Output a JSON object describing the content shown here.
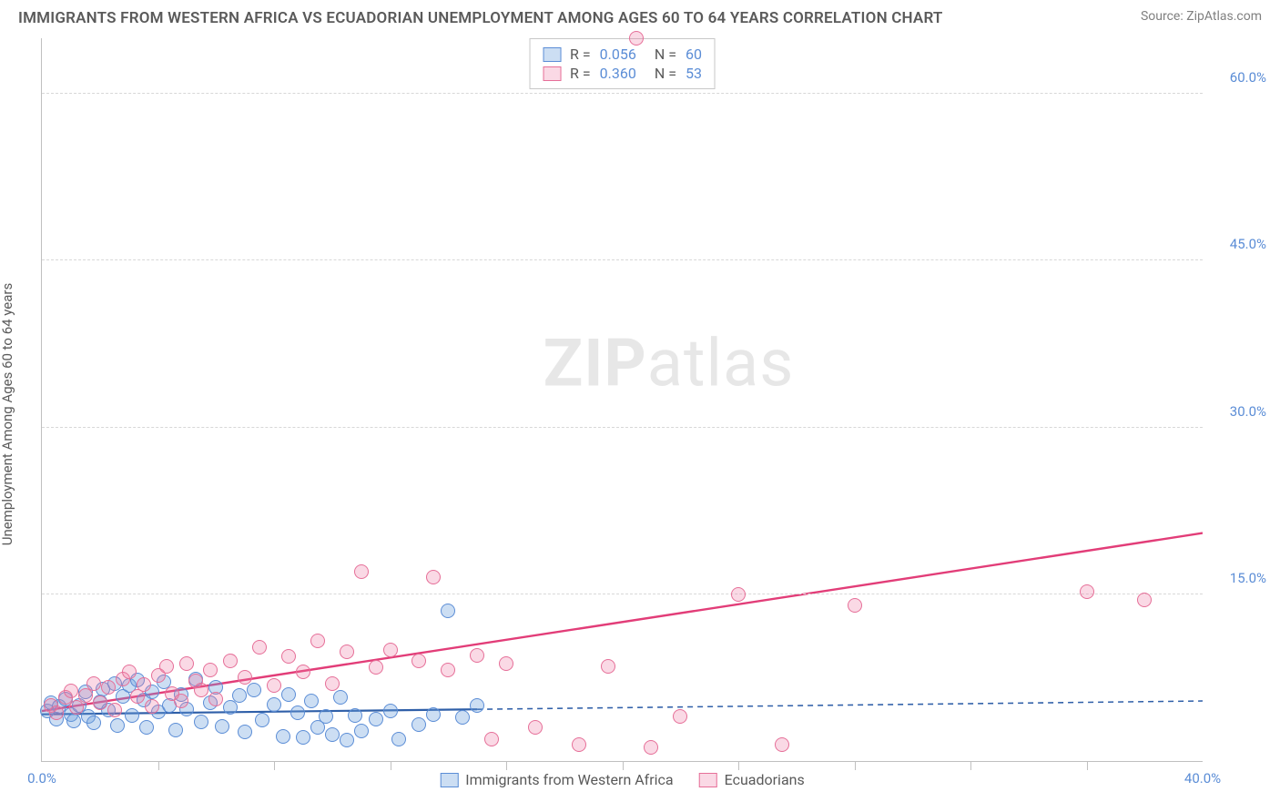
{
  "header": {
    "title": "IMMIGRANTS FROM WESTERN AFRICA VS ECUADORIAN UNEMPLOYMENT AMONG AGES 60 TO 64 YEARS CORRELATION CHART",
    "source_prefix": "Source: ",
    "source": "ZipAtlas.com"
  },
  "watermark": {
    "bold": "ZIP",
    "light": "atlas"
  },
  "chart": {
    "type": "scatter",
    "y_axis_label": "Unemployment Among Ages 60 to 64 years",
    "xlim": [
      0,
      40
    ],
    "ylim": [
      0,
      65
    ],
    "x_ticks": [
      0,
      40
    ],
    "x_tick_labels": [
      "0.0%",
      "40.0%"
    ],
    "x_minor_ticks": [
      4,
      8,
      12,
      16,
      20,
      24,
      28,
      32,
      36
    ],
    "y_ticks": [
      15,
      30,
      45,
      60
    ],
    "y_tick_labels": [
      "15.0%",
      "30.0%",
      "45.0%",
      "60.0%"
    ],
    "background_color": "#ffffff",
    "grid_color": "#d8d8d8",
    "axis_color": "#c0c0c0",
    "tick_label_color": "#5b8dd6",
    "label_color": "#5a5a5a",
    "title_fontsize": 17,
    "label_fontsize": 15,
    "marker_radius": 8,
    "marker_stroke_width": 1.5,
    "series": [
      {
        "key": "western_africa",
        "label": "Immigrants from Western Africa",
        "fill": "rgba(108,160,220,0.35)",
        "stroke": "#5b8dd6",
        "trend": {
          "color": "#2f5fa8",
          "width": 2.2,
          "y_at_x0": 4.2,
          "y_at_xmax": 5.4,
          "solid_until_x": 15
        },
        "stats": {
          "R": "0.056",
          "N": "60"
        },
        "points": [
          [
            0.2,
            4.5
          ],
          [
            0.3,
            5.2
          ],
          [
            0.5,
            3.8
          ],
          [
            0.6,
            4.9
          ],
          [
            0.8,
            5.6
          ],
          [
            1.0,
            4.2
          ],
          [
            1.1,
            3.6
          ],
          [
            1.3,
            5.0
          ],
          [
            1.5,
            6.2
          ],
          [
            1.6,
            4.0
          ],
          [
            1.8,
            3.4
          ],
          [
            2.0,
            5.3
          ],
          [
            2.1,
            6.5
          ],
          [
            2.3,
            4.6
          ],
          [
            2.5,
            7.0
          ],
          [
            2.6,
            3.2
          ],
          [
            2.8,
            5.8
          ],
          [
            3.0,
            6.8
          ],
          [
            3.1,
            4.1
          ],
          [
            3.3,
            7.3
          ],
          [
            3.5,
            5.5
          ],
          [
            3.6,
            3.0
          ],
          [
            3.8,
            6.2
          ],
          [
            4.0,
            4.4
          ],
          [
            4.2,
            7.1
          ],
          [
            4.4,
            5.0
          ],
          [
            4.6,
            2.8
          ],
          [
            4.8,
            6.0
          ],
          [
            5.0,
            4.7
          ],
          [
            5.3,
            7.4
          ],
          [
            5.5,
            3.5
          ],
          [
            5.8,
            5.2
          ],
          [
            6.0,
            6.6
          ],
          [
            6.2,
            3.1
          ],
          [
            6.5,
            4.8
          ],
          [
            6.8,
            5.9
          ],
          [
            7.0,
            2.6
          ],
          [
            7.3,
            6.4
          ],
          [
            7.6,
            3.7
          ],
          [
            8.0,
            5.1
          ],
          [
            8.3,
            2.2
          ],
          [
            8.5,
            6.0
          ],
          [
            8.8,
            4.3
          ],
          [
            9.0,
            2.1
          ],
          [
            9.3,
            5.4
          ],
          [
            9.5,
            3.0
          ],
          [
            9.8,
            4.0
          ],
          [
            10.0,
            2.4
          ],
          [
            10.3,
            5.7
          ],
          [
            10.5,
            1.9
          ],
          [
            10.8,
            4.1
          ],
          [
            11.0,
            2.7
          ],
          [
            11.5,
            3.8
          ],
          [
            12.0,
            4.5
          ],
          [
            12.3,
            2.0
          ],
          [
            13.0,
            3.3
          ],
          [
            13.5,
            4.2
          ],
          [
            14.0,
            13.5
          ],
          [
            14.5,
            3.9
          ],
          [
            15.0,
            5.0
          ]
        ]
      },
      {
        "key": "ecuadorians",
        "label": "Ecuadorians",
        "fill": "rgba(236,120,160,0.28)",
        "stroke": "#e66f98",
        "trend": {
          "color": "#e23d78",
          "width": 2.4,
          "y_at_x0": 4.5,
          "y_at_xmax": 20.5,
          "solid_until_x": 40
        },
        "stats": {
          "R": "0.360",
          "N": "53"
        },
        "points": [
          [
            0.3,
            5.0
          ],
          [
            0.5,
            4.3
          ],
          [
            0.8,
            5.7
          ],
          [
            1.0,
            6.3
          ],
          [
            1.2,
            4.8
          ],
          [
            1.5,
            5.9
          ],
          [
            1.8,
            7.0
          ],
          [
            2.0,
            5.2
          ],
          [
            2.3,
            6.6
          ],
          [
            2.5,
            4.6
          ],
          [
            2.8,
            7.4
          ],
          [
            3.0,
            8.0
          ],
          [
            3.3,
            5.8
          ],
          [
            3.5,
            6.9
          ],
          [
            3.8,
            4.9
          ],
          [
            4.0,
            7.7
          ],
          [
            4.3,
            8.5
          ],
          [
            4.5,
            6.1
          ],
          [
            4.8,
            5.4
          ],
          [
            5.0,
            8.8
          ],
          [
            5.3,
            7.2
          ],
          [
            5.5,
            6.4
          ],
          [
            5.8,
            8.2
          ],
          [
            6.0,
            5.6
          ],
          [
            6.5,
            9.0
          ],
          [
            7.0,
            7.5
          ],
          [
            7.5,
            10.2
          ],
          [
            8.0,
            6.8
          ],
          [
            8.5,
            9.4
          ],
          [
            9.0,
            8.0
          ],
          [
            9.5,
            10.8
          ],
          [
            10.0,
            7.0
          ],
          [
            10.5,
            9.8
          ],
          [
            11.0,
            17.0
          ],
          [
            11.5,
            8.4
          ],
          [
            12.0,
            10.0
          ],
          [
            13.0,
            9.0
          ],
          [
            13.5,
            16.5
          ],
          [
            14.0,
            8.2
          ],
          [
            15.0,
            9.5
          ],
          [
            15.5,
            2.0
          ],
          [
            16.0,
            8.8
          ],
          [
            17.0,
            3.0
          ],
          [
            18.5,
            1.5
          ],
          [
            19.5,
            8.5
          ],
          [
            20.5,
            65.0
          ],
          [
            21.0,
            1.2
          ],
          [
            22.0,
            4.0
          ],
          [
            24.0,
            15.0
          ],
          [
            25.5,
            1.5
          ],
          [
            28.0,
            14.0
          ],
          [
            36.0,
            15.2
          ],
          [
            38.0,
            14.5
          ]
        ]
      }
    ],
    "stats_legend": {
      "r_label": "R =",
      "n_label": "N ="
    }
  }
}
